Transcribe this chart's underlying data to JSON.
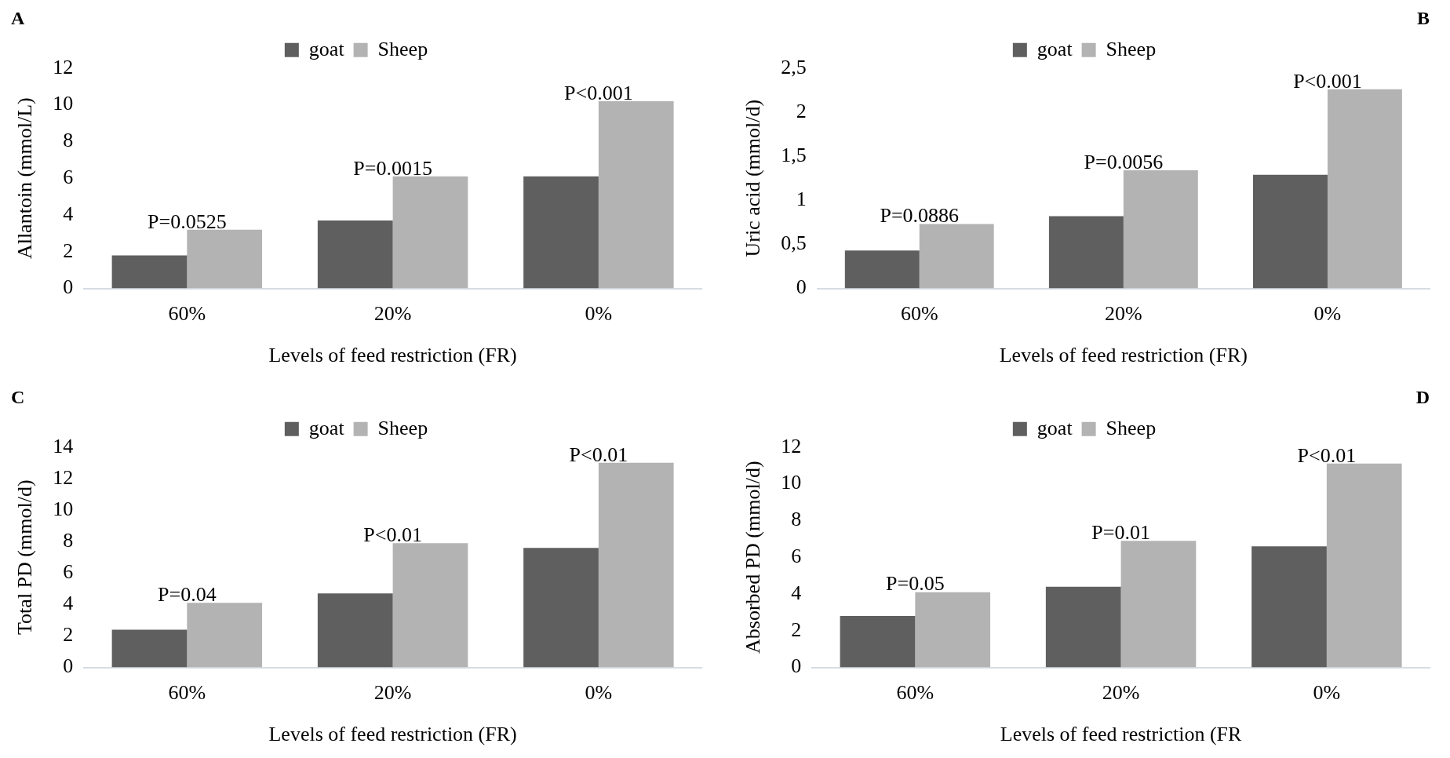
{
  "chart_data": [
    {
      "type": "bar",
      "title": "A",
      "xlabel": "Levels of feed restriction (FR)",
      "ylabel": "Allantoin (mmol/L)",
      "categories": [
        "60%",
        "20%",
        "0%"
      ],
      "series": [
        {
          "name": "goat",
          "color": "#5f5f5f",
          "values": [
            1.8,
            3.7,
            6.1
          ]
        },
        {
          "name": "Sheep",
          "color": "#b3b3b3",
          "values": [
            3.2,
            6.1,
            10.2
          ]
        }
      ],
      "ylim": [
        0,
        12
      ],
      "yticks": [
        0,
        2,
        4,
        6,
        8,
        10,
        12
      ],
      "grid": false,
      "legend": "top",
      "annotations": [
        {
          "text": "P=0.0525",
          "x": "60%",
          "y": 3.2
        },
        {
          "text": "P=0.0015",
          "x": "20%",
          "y": 6.1
        },
        {
          "text": "P<0.001",
          "x": "0%",
          "y": 10.2
        }
      ]
    },
    {
      "type": "bar",
      "title": "B",
      "xlabel": "Levels of feed restriction (FR)",
      "ylabel": "Uric acid (mmol/d)",
      "categories": [
        "60%",
        "20%",
        "0%"
      ],
      "series": [
        {
          "name": "goat",
          "color": "#5f5f5f",
          "values": [
            0.43,
            0.82,
            1.29
          ]
        },
        {
          "name": "Sheep",
          "color": "#b3b3b3",
          "values": [
            0.73,
            1.34,
            2.26
          ]
        }
      ],
      "ylim": [
        0,
        2.5
      ],
      "yticks": [
        0,
        {
          "value": 0.5,
          "label": "0,5"
        },
        1,
        {
          "value": 1.5,
          "label": "1,5"
        },
        2,
        {
          "value": 2.5,
          "label": "2,5"
        }
      ],
      "grid": false,
      "legend": "top",
      "annotations": [
        {
          "text": "P=0.0886",
          "x": "60%",
          "y": 0.73
        },
        {
          "text": "P=0.0056",
          "x": "20%",
          "y": 1.34
        },
        {
          "text": "P<0.001",
          "x": "0%",
          "y": 2.26
        }
      ]
    },
    {
      "type": "bar",
      "title": "C",
      "xlabel": "Levels of feed restriction (FR)",
      "ylabel": "Total PD (mmol/d)",
      "categories": [
        "60%",
        "20%",
        "0%"
      ],
      "series": [
        {
          "name": "goat",
          "color": "#5f5f5f",
          "values": [
            2.4,
            4.7,
            7.6
          ]
        },
        {
          "name": "Sheep",
          "color": "#b3b3b3",
          "values": [
            4.1,
            7.9,
            13.0
          ]
        }
      ],
      "ylim": [
        0,
        14
      ],
      "yticks": [
        0,
        2,
        4,
        6,
        8,
        10,
        12,
        14
      ],
      "grid": false,
      "legend": "top",
      "annotations": [
        {
          "text": "P=0.04",
          "x": "60%",
          "y": 4.1
        },
        {
          "text": "P<0.01",
          "x": "20%",
          "y": 7.9
        },
        {
          "text": "P<0.01",
          "x": "0%",
          "y": 13.0
        }
      ]
    },
    {
      "type": "bar",
      "title": "D",
      "xlabel": "Levels of feed restriction (FR",
      "ylabel": "Absorbed PD (mmol/d)",
      "categories": [
        "60%",
        "20%",
        "0%"
      ],
      "series": [
        {
          "name": "goat",
          "color": "#5f5f5f",
          "values": [
            2.8,
            4.4,
            6.6
          ]
        },
        {
          "name": "Sheep",
          "color": "#b3b3b3",
          "values": [
            4.1,
            6.9,
            11.1
          ]
        }
      ],
      "ylim": [
        0,
        12
      ],
      "yticks": [
        0,
        2,
        4,
        6,
        8,
        10,
        12
      ],
      "grid": false,
      "legend": "top",
      "annotations": [
        {
          "text": "P=0.05",
          "x": "60%",
          "y": 4.1
        },
        {
          "text": "P=0.01",
          "x": "20%",
          "y": 6.9
        },
        {
          "text": "P<0.01",
          "x": "0%",
          "y": 11.1
        }
      ]
    }
  ]
}
